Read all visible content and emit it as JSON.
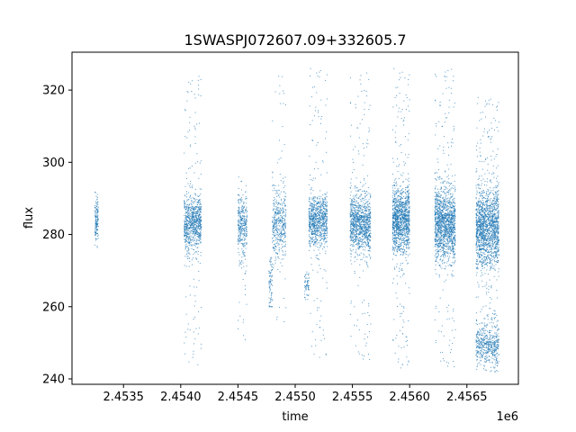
{
  "chart_data": {
    "type": "scatter",
    "title": "1SWASPJ072607.09+332605.7",
    "xlabel": "time",
    "ylabel": "flux",
    "x_offset_label": "1e6",
    "xlim": [
      2.45305,
      2.45695
    ],
    "ylim": [
      238.5,
      330.5
    ],
    "x_ticks": [
      2.4535,
      2.454,
      2.4545,
      2.455,
      2.4555,
      2.456,
      2.4565
    ],
    "x_tick_labels": [
      "2.4535",
      "2.4540",
      "2.4545",
      "2.4550",
      "2.4555",
      "2.4560",
      "2.4565"
    ],
    "y_ticks": [
      240,
      260,
      280,
      300,
      320
    ],
    "y_tick_labels": [
      "240",
      "260",
      "280",
      "300",
      "320"
    ],
    "grid": false,
    "legend": "none",
    "marker_color": "#1f77b4",
    "series": [
      {
        "clusters": [
          {
            "x_start": 2.45325,
            "x_end": 2.45328,
            "y_center": 284,
            "y_spread": 3,
            "y_min": 276,
            "y_max": 292,
            "density": 150
          },
          {
            "x_start": 2.45403,
            "x_end": 2.45418,
            "y_center": 283,
            "y_spread": 4,
            "y_min": 243,
            "y_max": 325,
            "density": 900
          },
          {
            "x_start": 2.4545,
            "x_end": 2.45458,
            "y_center": 283,
            "y_spread": 4,
            "y_min": 250,
            "y_max": 296,
            "density": 350
          },
          {
            "x_start": 2.45477,
            "x_end": 2.4548,
            "y_center": 266,
            "y_spread": 4,
            "y_min": 260,
            "y_max": 275,
            "density": 80
          },
          {
            "x_start": 2.4548,
            "x_end": 2.45492,
            "y_center": 283,
            "y_spread": 5,
            "y_min": 255,
            "y_max": 326,
            "density": 450
          },
          {
            "x_start": 2.45508,
            "x_end": 2.45512,
            "y_center": 266,
            "y_spread": 2,
            "y_min": 262,
            "y_max": 270,
            "density": 60
          },
          {
            "x_start": 2.45512,
            "x_end": 2.45528,
            "y_center": 284,
            "y_spread": 3.5,
            "y_min": 245,
            "y_max": 326,
            "density": 900
          },
          {
            "x_start": 2.45548,
            "x_end": 2.45566,
            "y_center": 283,
            "y_spread": 4,
            "y_min": 245,
            "y_max": 325,
            "density": 1100
          },
          {
            "x_start": 2.45585,
            "x_end": 2.456,
            "y_center": 284,
            "y_spread": 4.5,
            "y_min": 243,
            "y_max": 326,
            "density": 1300
          },
          {
            "x_start": 2.45622,
            "x_end": 2.4564,
            "y_center": 283,
            "y_spread": 5,
            "y_min": 243,
            "y_max": 326,
            "density": 1500
          },
          {
            "x_start": 2.45658,
            "x_end": 2.45678,
            "y_center": 282,
            "y_spread": 5.5,
            "y_min": 252,
            "y_max": 318,
            "density": 1700
          },
          {
            "x_start": 2.45658,
            "x_end": 2.45678,
            "y_center": 249,
            "y_spread": 2.5,
            "y_min": 242,
            "y_max": 258,
            "density": 500
          }
        ]
      }
    ]
  }
}
